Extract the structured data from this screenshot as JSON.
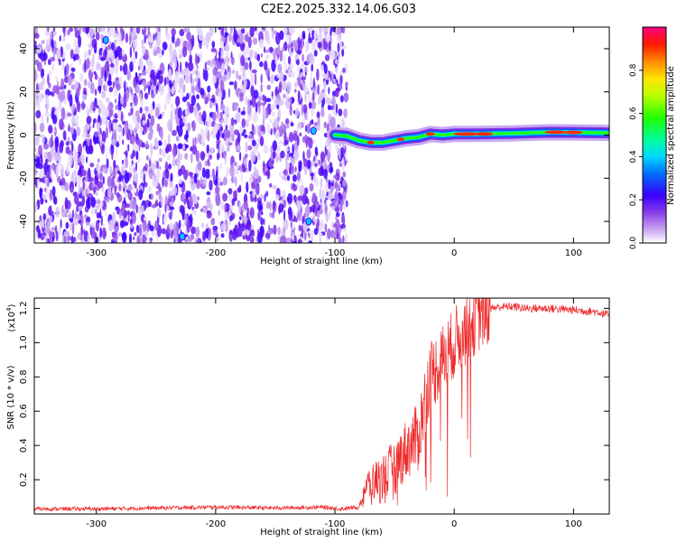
{
  "title": "C2E2.2025.332.14.06.G03",
  "chart_data": [
    {
      "type": "heatmap",
      "xlabel": "Height of straight line (km)",
      "ylabel": "Frequency (Hz)",
      "xlim": [
        -352,
        130
      ],
      "ylim": [
        -50,
        50
      ],
      "x_ticks": [
        -300,
        -200,
        -100,
        0,
        100
      ],
      "y_ticks": [
        -40,
        -20,
        0,
        20,
        40
      ],
      "grid": false,
      "noise_region_x": [
        -352,
        -90
      ],
      "signal_track": [
        {
          "x": -100,
          "f": 0.0
        },
        {
          "x": -90,
          "f": -0.5
        },
        {
          "x": -80,
          "f": -2.5
        },
        {
          "x": -70,
          "f": -3.5
        },
        {
          "x": -60,
          "f": -3.5
        },
        {
          "x": -50,
          "f": -2.5
        },
        {
          "x": -40,
          "f": -1.5
        },
        {
          "x": -30,
          "f": -1.0
        },
        {
          "x": -20,
          "f": 0.5
        },
        {
          "x": -10,
          "f": 0.0
        },
        {
          "x": 0,
          "f": 0.5
        },
        {
          "x": 20,
          "f": 0.5
        },
        {
          "x": 50,
          "f": 0.8
        },
        {
          "x": 80,
          "f": 1.3
        },
        {
          "x": 100,
          "f": 1.2
        },
        {
          "x": 130,
          "f": 1.0
        }
      ],
      "colorbar": {
        "label": "Normalized spectral amplitude",
        "range": [
          0,
          1
        ],
        "ticks": [
          0.0,
          0.2,
          0.4,
          0.6,
          0.8
        ],
        "tick_labels": [
          "0.0",
          "0.2",
          "0.4",
          "0.6",
          "0.8"
        ]
      }
    },
    {
      "type": "line",
      "xlabel": "Height of straight line (km)",
      "ylabel": "SNR (10 * v/v)",
      "multiplier": "(x10",
      "multiplier_exp": "4",
      "multiplier_close": ")",
      "xlim": [
        -352,
        130
      ],
      "ylim": [
        0,
        1.26
      ],
      "x_ticks": [
        -300,
        -200,
        -100,
        0,
        100
      ],
      "y_ticks": [
        0.2,
        0.4,
        0.6,
        0.8,
        1.0,
        1.2
      ],
      "y_tick_labels": [
        "0.2",
        "0.4",
        "0.6",
        "0.8",
        "1.0",
        "1.2"
      ],
      "color": "#ee2a2a",
      "series": [
        {
          "name": "SNR",
          "x": [
            -352,
            -300,
            -250,
            -200,
            -150,
            -110,
            -95,
            -80,
            -75,
            -70,
            -60,
            -50,
            -40,
            -30,
            -25,
            -20,
            -15,
            -10,
            -5,
            0,
            10,
            20,
            30,
            40,
            50,
            60,
            80,
            100,
            120,
            130
          ],
          "y": [
            0.03,
            0.03,
            0.035,
            0.04,
            0.035,
            0.04,
            0.03,
            0.04,
            0.15,
            0.18,
            0.22,
            0.28,
            0.38,
            0.45,
            0.65,
            0.82,
            0.85,
            0.9,
            0.95,
            1.0,
            1.08,
            1.15,
            1.2,
            1.21,
            1.21,
            1.2,
            1.2,
            1.19,
            1.18,
            1.16
          ]
        }
      ]
    }
  ]
}
